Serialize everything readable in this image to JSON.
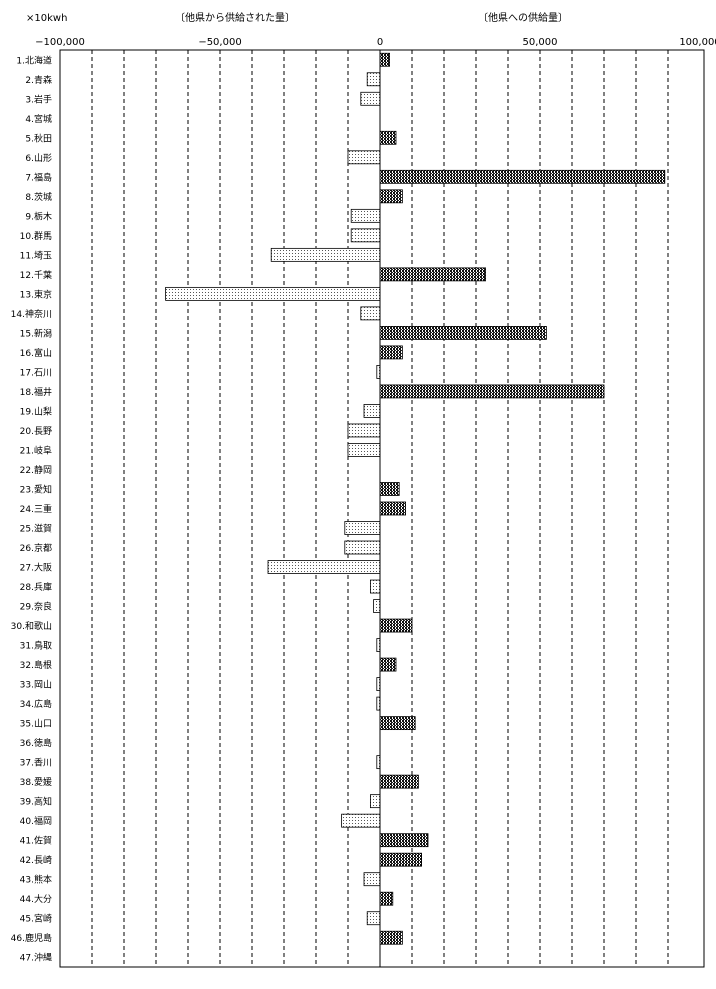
{
  "chart_data": {
    "type": "bar",
    "orientation": "horizontal",
    "unit": "×10kwh",
    "negative_header": "〔他県から供給された量〕",
    "positive_header": "〔他県への供給量〕",
    "xlim": [
      -100000,
      100000
    ],
    "x_tick_values": [
      -100000,
      -50000,
      0,
      50000,
      100000
    ],
    "x_tick_labels": [
      "−100,000",
      "−50,000",
      "0",
      "50,000",
      "100,000"
    ],
    "grid": "vertical-dashed",
    "series_colors": {
      "positive": "#333333",
      "negative": "#dddddd"
    },
    "categories": [
      "1.北海道",
      "2.青森",
      "3.岩手",
      "4.宮城",
      "5.秋田",
      "6.山形",
      "7.福島",
      "8.茨城",
      "9.栃木",
      "10.群馬",
      "11.埼玉",
      "12.千葉",
      "13.東京",
      "14.神奈川",
      "15.新潟",
      "16.富山",
      "17.石川",
      "18.福井",
      "19.山梨",
      "20.長野",
      "21.岐阜",
      "22.静岡",
      "23.愛知",
      "24.三重",
      "25.滋賀",
      "26.京都",
      "27.大阪",
      "28.兵庫",
      "29.奈良",
      "30.和歌山",
      "31.鳥取",
      "32.島根",
      "33.岡山",
      "34.広島",
      "35.山口",
      "36.徳島",
      "37.香川",
      "38.愛媛",
      "39.高知",
      "40.福岡",
      "41.佐賀",
      "42.長崎",
      "43.熊本",
      "44.大分",
      "45.宮崎",
      "46.鹿児島",
      "47.沖縄"
    ],
    "values": [
      3000,
      -4000,
      -6000,
      0,
      5000,
      -10000,
      89000,
      7000,
      -9000,
      -9000,
      -34000,
      33000,
      -67000,
      -6000,
      52000,
      7000,
      -1000,
      70000,
      -5000,
      -10000,
      -10000,
      0,
      6000,
      8000,
      -11000,
      -11000,
      -35000,
      -3000,
      -2000,
      10000,
      -1000,
      5000,
      -1000,
      -1000,
      11000,
      0,
      -1000,
      12000,
      -3000,
      -12000,
      15000,
      13000,
      -5000,
      4000,
      -4000,
      7000,
      0
    ]
  }
}
